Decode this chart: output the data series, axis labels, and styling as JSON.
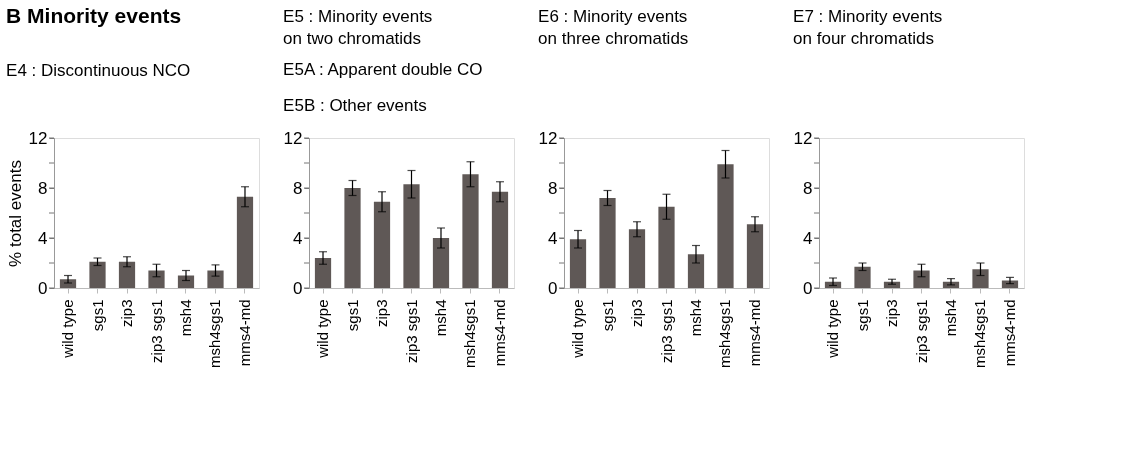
{
  "chart_data": [
    {
      "type": "bar",
      "title": "B   Minority events",
      "annotations": [
        "E4 : Discontinuous NCO"
      ],
      "ylabel": "% total events",
      "categories": [
        "wild type",
        "sgs1",
        "zip3",
        "zip3 sgs1",
        "msh4",
        "msh4sgs1",
        "mms4-md"
      ],
      "values": [
        0.7,
        2.1,
        2.1,
        1.4,
        1.0,
        1.4,
        7.3
      ],
      "errors": [
        0.3,
        0.3,
        0.4,
        0.5,
        0.4,
        0.45,
        0.8
      ],
      "color": "#5f5856",
      "ylim": [
        0,
        12
      ],
      "yticks": [
        0,
        {
          "value": 2,
          "label": null
        },
        4,
        {
          "value": 6,
          "label": null
        },
        8,
        {
          "value": 10,
          "label": null
        },
        12
      ]
    },
    {
      "type": "bar",
      "title": "E5 : Minority events\non two chromatids",
      "annotations": [
        "E5A : Apparent double CO",
        "E5B : Other events"
      ],
      "categories": [
        "wild type",
        "sgs1",
        "zip3",
        "zip3 sgs1",
        "msh4",
        "msh4sgs1",
        "mms4-md"
      ],
      "values": [
        2.4,
        8.0,
        6.9,
        8.3,
        4.0,
        9.1,
        7.7
      ],
      "errors": [
        0.5,
        0.6,
        0.8,
        1.1,
        0.8,
        1.0,
        0.8
      ],
      "color": "#5f5856",
      "ylim": [
        0,
        12
      ],
      "yticks": [
        0,
        {
          "value": 2,
          "label": null
        },
        4,
        {
          "value": 6,
          "label": null
        },
        8,
        {
          "value": 10,
          "label": null
        },
        12
      ]
    },
    {
      "type": "bar",
      "title": "E6 : Minority events\non three chromatids",
      "categories": [
        "wild type",
        "sgs1",
        "zip3",
        "zip3 sgs1",
        "msh4",
        "msh4sgs1",
        "mms4-md"
      ],
      "values": [
        3.9,
        7.2,
        4.7,
        6.5,
        2.7,
        9.9,
        5.1
      ],
      "errors": [
        0.7,
        0.6,
        0.6,
        1.0,
        0.7,
        1.1,
        0.6
      ],
      "color": "#5f5856",
      "ylim": [
        0,
        12
      ],
      "yticks": [
        0,
        {
          "value": 2,
          "label": null
        },
        4,
        {
          "value": 6,
          "label": null
        },
        8,
        {
          "value": 10,
          "label": null
        },
        12
      ]
    },
    {
      "type": "bar",
      "title": "E7 : Minority events\non four chromatids",
      "categories": [
        "wild type",
        "sgs1",
        "zip3",
        "zip3 sgs1",
        "msh4",
        "msh4sgs1",
        "mms4-md"
      ],
      "values": [
        0.5,
        1.7,
        0.5,
        1.4,
        0.5,
        1.5,
        0.6
      ],
      "errors": [
        0.3,
        0.3,
        0.2,
        0.5,
        0.25,
        0.5,
        0.25
      ],
      "color": "#5f5856",
      "ylim": [
        0,
        12
      ],
      "yticks": [
        0,
        {
          "value": 2,
          "label": null
        },
        4,
        {
          "value": 6,
          "label": null
        },
        8,
        {
          "value": 10,
          "label": null
        },
        12
      ]
    }
  ]
}
